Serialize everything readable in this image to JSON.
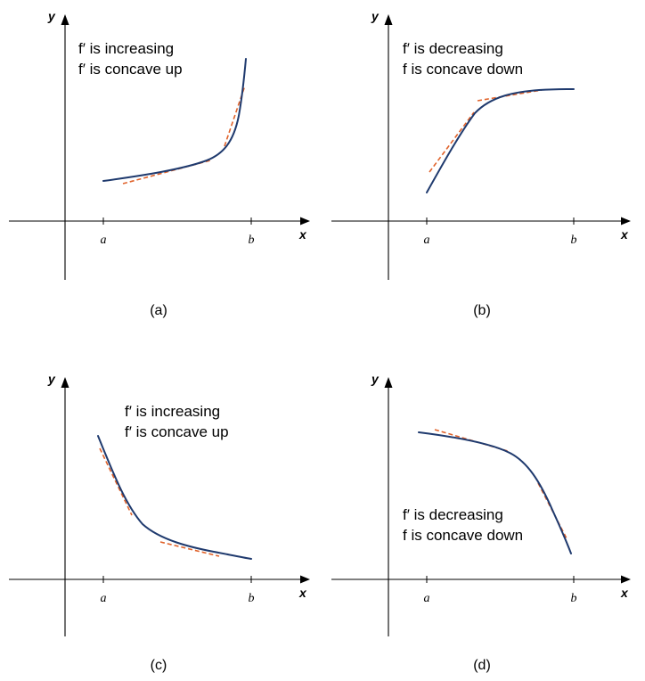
{
  "colors": {
    "curve": "#1f3a6e",
    "tangent": "#e0622a",
    "axis": "#000000"
  },
  "panels": [
    {
      "id": "a",
      "caption": "(a)",
      "x_axis_label": "x",
      "y_axis_label": "y",
      "tick_a": "a",
      "tick_b": "b",
      "note_line1": "f′ is increasing",
      "note_line2": "f′ is concave up"
    },
    {
      "id": "b",
      "caption": "(b)",
      "x_axis_label": "x",
      "y_axis_label": "y",
      "tick_a": "a",
      "tick_b": "b",
      "note_line1": "f′ is decreasing",
      "note_line2": "f is concave down"
    },
    {
      "id": "c",
      "caption": "(c)",
      "x_axis_label": "x",
      "y_axis_label": "y",
      "tick_a": "a",
      "tick_b": "b",
      "note_line1": "f′ is increasing",
      "note_line2": "f′ is concave up"
    },
    {
      "id": "d",
      "caption": "(d)",
      "x_axis_label": "x",
      "y_axis_label": "y",
      "tick_a": "a",
      "tick_b": "b",
      "note_line1": "f′ is decreasing",
      "note_line2": "f is concave down"
    }
  ]
}
